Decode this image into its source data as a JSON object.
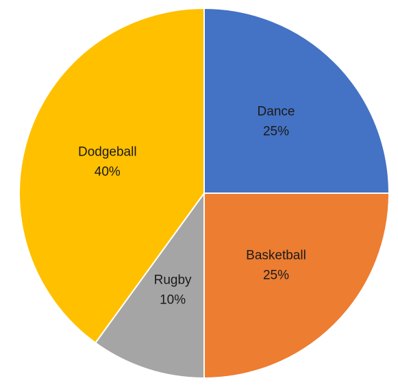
{
  "chart_data": {
    "type": "pie",
    "title": "",
    "start_angle_deg": 0,
    "direction": "clockwise",
    "legend": "none",
    "slices": [
      {
        "label": "Dance",
        "value": 25,
        "value_label": "25%",
        "color": "#4472C4"
      },
      {
        "label": "Basketball",
        "value": 25,
        "value_label": "25%",
        "color": "#ED7D31"
      },
      {
        "label": "Rugby",
        "value": 10,
        "value_label": "10%",
        "color": "#A5A5A5"
      },
      {
        "label": "Dodgeball",
        "value": 40,
        "value_label": "40%",
        "color": "#FFC000"
      }
    ]
  }
}
